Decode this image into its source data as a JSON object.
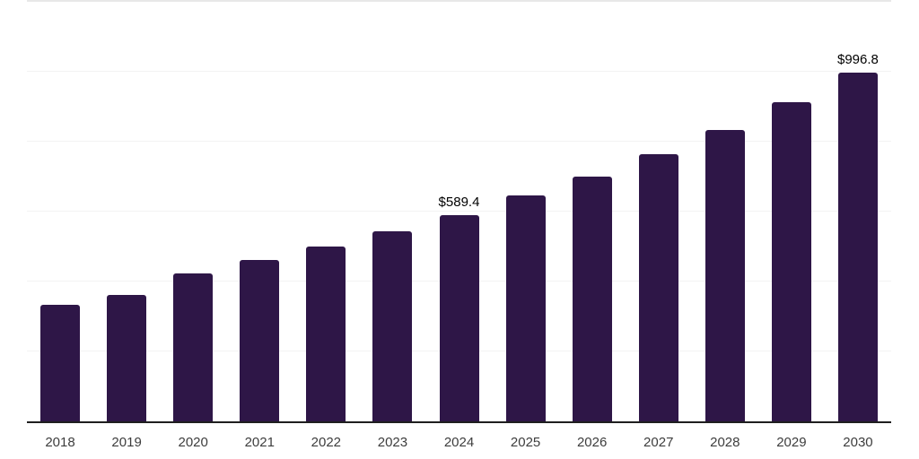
{
  "chart_data": {
    "type": "bar",
    "title": "",
    "xlabel": "",
    "ylabel": "",
    "categories": [
      "2018",
      "2019",
      "2020",
      "2021",
      "2022",
      "2023",
      "2024",
      "2025",
      "2026",
      "2027",
      "2028",
      "2029",
      "2030"
    ],
    "values": [
      333,
      361,
      423,
      462,
      500,
      544,
      589.4,
      646,
      700,
      764,
      833,
      913,
      996.8
    ],
    "value_labels": {
      "2024": "$589.4",
      "2030": "$996.8"
    },
    "ylim": [
      0,
      1200
    ],
    "gridline_interval": 200,
    "grid": "horizontal",
    "legend": "none",
    "colors": {
      "bar": "#2e1647",
      "axis_line": "#1f1f1f",
      "gridline": "#f3f3f3",
      "top_gridline": "#e8e8e8",
      "tick_label": "#3d3d3d",
      "value_label": "#000000",
      "background": "#ffffff"
    }
  }
}
